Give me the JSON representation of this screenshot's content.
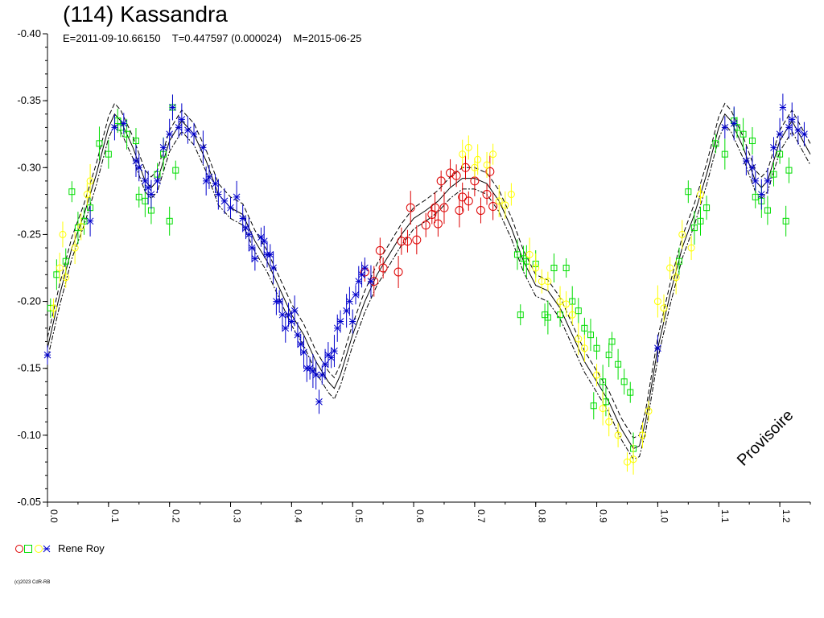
{
  "chart": {
    "title": "(114) Kassandra",
    "subtitle": "E=2011-09-10.66150    T=0.447597 (0.000024)    M=2015-06-25",
    "watermark": "Provisoire",
    "copyright": "(c)2023 CdR-RB",
    "legend_label": "Rene Roy",
    "colors": {
      "red": "#dd0000",
      "green": "#00dd00",
      "yellow": "#ffff00",
      "blue": "#0000cc"
    }
  },
  "chart_data": {
    "type": "scatter",
    "xlabel": "",
    "ylabel": "",
    "xlim": [
      0.0,
      1.25
    ],
    "ylim": [
      -0.4,
      -0.05
    ],
    "y_ticks": [
      -0.4,
      -0.35,
      -0.3,
      -0.25,
      -0.2,
      -0.15,
      -0.1,
      -0.05
    ],
    "y_tick_labels": [
      "-0.40",
      "-0.35",
      "-0.30",
      "-0.25",
      "-0.20",
      "-0.15",
      "-0.10",
      "-0.05"
    ],
    "x_ticks": [
      0.0,
      0.1,
      0.2,
      0.3,
      0.4,
      0.5,
      0.6,
      0.7,
      0.8,
      0.9,
      1.0,
      1.1,
      1.2
    ],
    "x_tick_labels": [
      "0.0",
      "0.1",
      "0.2",
      "0.3",
      "0.4",
      "0.5",
      "0.6",
      "0.7",
      "0.8",
      "0.9",
      "1.0",
      "1.1",
      "1.2"
    ],
    "fit_curve": [
      [
        0.0,
        -0.165
      ],
      [
        0.02,
        -0.205
      ],
      [
        0.04,
        -0.24
      ],
      [
        0.06,
        -0.265
      ],
      [
        0.08,
        -0.295
      ],
      [
        0.1,
        -0.33
      ],
      [
        0.11,
        -0.34
      ],
      [
        0.12,
        -0.335
      ],
      [
        0.14,
        -0.315
      ],
      [
        0.16,
        -0.29
      ],
      [
        0.17,
        -0.285
      ],
      [
        0.18,
        -0.29
      ],
      [
        0.2,
        -0.32
      ],
      [
        0.22,
        -0.335
      ],
      [
        0.24,
        -0.325
      ],
      [
        0.26,
        -0.305
      ],
      [
        0.28,
        -0.28
      ],
      [
        0.3,
        -0.27
      ],
      [
        0.32,
        -0.265
      ],
      [
        0.34,
        -0.245
      ],
      [
        0.36,
        -0.23
      ],
      [
        0.38,
        -0.21
      ],
      [
        0.4,
        -0.19
      ],
      [
        0.42,
        -0.175
      ],
      [
        0.44,
        -0.155
      ],
      [
        0.46,
        -0.14
      ],
      [
        0.47,
        -0.135
      ],
      [
        0.48,
        -0.145
      ],
      [
        0.5,
        -0.175
      ],
      [
        0.52,
        -0.2
      ],
      [
        0.54,
        -0.22
      ],
      [
        0.56,
        -0.235
      ],
      [
        0.58,
        -0.25
      ],
      [
        0.6,
        -0.262
      ],
      [
        0.62,
        -0.268
      ],
      [
        0.64,
        -0.275
      ],
      [
        0.66,
        -0.285
      ],
      [
        0.68,
        -0.292
      ],
      [
        0.7,
        -0.292
      ],
      [
        0.72,
        -0.288
      ],
      [
        0.74,
        -0.275
      ],
      [
        0.76,
        -0.255
      ],
      [
        0.78,
        -0.23
      ],
      [
        0.8,
        -0.212
      ],
      [
        0.82,
        -0.208
      ],
      [
        0.84,
        -0.195
      ],
      [
        0.86,
        -0.175
      ],
      [
        0.88,
        -0.155
      ],
      [
        0.9,
        -0.14
      ],
      [
        0.92,
        -0.125
      ],
      [
        0.94,
        -0.105
      ],
      [
        0.96,
        -0.09
      ],
      [
        0.97,
        -0.092
      ],
      [
        0.98,
        -0.11
      ],
      [
        1.0,
        -0.165
      ],
      [
        1.02,
        -0.205
      ],
      [
        1.04,
        -0.24
      ],
      [
        1.06,
        -0.265
      ],
      [
        1.08,
        -0.295
      ],
      [
        1.1,
        -0.33
      ],
      [
        1.11,
        -0.34
      ],
      [
        1.12,
        -0.335
      ],
      [
        1.14,
        -0.315
      ],
      [
        1.16,
        -0.29
      ],
      [
        1.17,
        -0.285
      ],
      [
        1.18,
        -0.29
      ],
      [
        1.2,
        -0.32
      ],
      [
        1.22,
        -0.335
      ],
      [
        1.25,
        -0.31
      ]
    ],
    "series": [
      {
        "marker": "circle",
        "color": "red",
        "points": [
          [
            0.52,
            -0.222
          ],
          [
            0.535,
            -0.215
          ],
          [
            0.545,
            -0.238
          ],
          [
            0.55,
            -0.225
          ],
          [
            0.575,
            -0.222
          ],
          [
            0.58,
            -0.245
          ],
          [
            0.59,
            -0.245
          ],
          [
            0.595,
            -0.27
          ],
          [
            0.605,
            -0.246
          ],
          [
            0.62,
            -0.257
          ],
          [
            0.63,
            -0.265
          ],
          [
            0.635,
            -0.27
          ],
          [
            0.64,
            -0.258
          ],
          [
            0.645,
            -0.29
          ],
          [
            0.65,
            -0.27
          ],
          [
            0.66,
            -0.296
          ],
          [
            0.67,
            -0.294
          ],
          [
            0.675,
            -0.268
          ],
          [
            0.68,
            -0.278
          ],
          [
            0.685,
            -0.3
          ],
          [
            0.69,
            -0.275
          ],
          [
            0.7,
            -0.29
          ],
          [
            0.71,
            -0.268
          ],
          [
            0.72,
            -0.28
          ],
          [
            0.725,
            -0.297
          ],
          [
            0.73,
            -0.271
          ]
        ]
      },
      {
        "marker": "square",
        "color": "green",
        "points": [
          [
            0.005,
            -0.195
          ],
          [
            0.015,
            -0.22
          ],
          [
            0.03,
            -0.23
          ],
          [
            0.04,
            -0.282
          ],
          [
            0.05,
            -0.255
          ],
          [
            0.06,
            -0.26
          ],
          [
            0.07,
            -0.27
          ],
          [
            0.085,
            -0.318
          ],
          [
            0.1,
            -0.31
          ],
          [
            0.115,
            -0.335
          ],
          [
            0.12,
            -0.33
          ],
          [
            0.13,
            -0.325
          ],
          [
            0.145,
            -0.32
          ],
          [
            0.15,
            -0.278
          ],
          [
            0.16,
            -0.275
          ],
          [
            0.17,
            -0.268
          ],
          [
            0.18,
            -0.295
          ],
          [
            0.19,
            -0.31
          ],
          [
            0.2,
            -0.26
          ],
          [
            0.205,
            -0.345
          ],
          [
            0.21,
            -0.298
          ],
          [
            0.77,
            -0.235
          ],
          [
            0.78,
            -0.232
          ],
          [
            0.775,
            -0.19
          ],
          [
            0.785,
            -0.23
          ],
          [
            0.8,
            -0.228
          ],
          [
            0.815,
            -0.19
          ],
          [
            0.82,
            -0.188
          ],
          [
            0.83,
            -0.225
          ],
          [
            0.84,
            -0.19
          ],
          [
            0.85,
            -0.225
          ],
          [
            0.86,
            -0.2
          ],
          [
            0.87,
            -0.193
          ],
          [
            0.88,
            -0.18
          ],
          [
            0.89,
            -0.175
          ],
          [
            0.895,
            -0.122
          ],
          [
            0.9,
            -0.165
          ],
          [
            0.91,
            -0.14
          ],
          [
            0.915,
            -0.125
          ],
          [
            0.92,
            -0.16
          ],
          [
            0.925,
            -0.17
          ],
          [
            0.935,
            -0.153
          ],
          [
            0.945,
            -0.14
          ],
          [
            0.955,
            -0.132
          ],
          [
            0.96,
            -0.09
          ],
          [
            1.035,
            -0.23
          ],
          [
            1.05,
            -0.282
          ],
          [
            1.06,
            -0.255
          ],
          [
            1.07,
            -0.26
          ],
          [
            1.08,
            -0.27
          ],
          [
            1.095,
            -0.318
          ],
          [
            1.11,
            -0.31
          ],
          [
            1.125,
            -0.335
          ],
          [
            1.13,
            -0.33
          ],
          [
            1.14,
            -0.325
          ],
          [
            1.155,
            -0.32
          ],
          [
            1.16,
            -0.278
          ],
          [
            1.17,
            -0.275
          ],
          [
            1.18,
            -0.268
          ],
          [
            1.19,
            -0.295
          ],
          [
            1.2,
            -0.31
          ],
          [
            1.21,
            -0.26
          ],
          [
            1.215,
            -0.298
          ]
        ]
      },
      {
        "marker": "diamond",
        "color": "yellow",
        "points": [
          [
            0.01,
            -0.195
          ],
          [
            0.02,
            -0.225
          ],
          [
            0.025,
            -0.25
          ],
          [
            0.03,
            -0.218
          ],
          [
            0.045,
            -0.24
          ],
          [
            0.055,
            -0.256
          ],
          [
            0.065,
            -0.28
          ],
          [
            0.07,
            -0.29
          ],
          [
            0.68,
            -0.31
          ],
          [
            0.69,
            -0.315
          ],
          [
            0.7,
            -0.3
          ],
          [
            0.705,
            -0.306
          ],
          [
            0.72,
            -0.302
          ],
          [
            0.73,
            -0.31
          ],
          [
            0.74,
            -0.275
          ],
          [
            0.75,
            -0.272
          ],
          [
            0.76,
            -0.28
          ],
          [
            0.79,
            -0.235
          ],
          [
            0.8,
            -0.225
          ],
          [
            0.81,
            -0.215
          ],
          [
            0.82,
            -0.215
          ],
          [
            0.84,
            -0.2
          ],
          [
            0.85,
            -0.198
          ],
          [
            0.86,
            -0.19
          ],
          [
            0.87,
            -0.172
          ],
          [
            0.88,
            -0.165
          ],
          [
            0.9,
            -0.145
          ],
          [
            0.91,
            -0.12
          ],
          [
            0.92,
            -0.11
          ],
          [
            0.935,
            -0.1
          ],
          [
            0.95,
            -0.08
          ],
          [
            0.96,
            -0.082
          ],
          [
            0.975,
            -0.1
          ],
          [
            0.985,
            -0.118
          ],
          [
            1.0,
            -0.2
          ],
          [
            1.01,
            -0.195
          ],
          [
            1.02,
            -0.225
          ],
          [
            1.03,
            -0.218
          ],
          [
            1.04,
            -0.25
          ],
          [
            1.055,
            -0.24
          ],
          [
            1.07,
            -0.28
          ]
        ]
      },
      {
        "marker": "star",
        "color": "blue",
        "points": [
          [
            0.0,
            -0.16
          ],
          [
            0.07,
            -0.26
          ],
          [
            0.11,
            -0.33
          ],
          [
            0.125,
            -0.333
          ],
          [
            0.145,
            -0.305
          ],
          [
            0.15,
            -0.3
          ],
          [
            0.16,
            -0.29
          ],
          [
            0.165,
            -0.285
          ],
          [
            0.17,
            -0.28
          ],
          [
            0.18,
            -0.29
          ],
          [
            0.19,
            -0.315
          ],
          [
            0.2,
            -0.325
          ],
          [
            0.205,
            -0.345
          ],
          [
            0.215,
            -0.33
          ],
          [
            0.22,
            -0.336
          ],
          [
            0.23,
            -0.328
          ],
          [
            0.24,
            -0.325
          ],
          [
            0.255,
            -0.315
          ],
          [
            0.26,
            -0.29
          ],
          [
            0.265,
            -0.293
          ],
          [
            0.275,
            -0.288
          ],
          [
            0.28,
            -0.28
          ],
          [
            0.29,
            -0.275
          ],
          [
            0.3,
            -0.27
          ],
          [
            0.31,
            -0.278
          ],
          [
            0.32,
            -0.262
          ],
          [
            0.325,
            -0.255
          ],
          [
            0.33,
            -0.25
          ],
          [
            0.335,
            -0.24
          ],
          [
            0.34,
            -0.232
          ],
          [
            0.35,
            -0.248
          ],
          [
            0.355,
            -0.245
          ],
          [
            0.36,
            -0.235
          ],
          [
            0.365,
            -0.235
          ],
          [
            0.37,
            -0.225
          ],
          [
            0.375,
            -0.2
          ],
          [
            0.38,
            -0.2
          ],
          [
            0.385,
            -0.19
          ],
          [
            0.39,
            -0.18
          ],
          [
            0.395,
            -0.19
          ],
          [
            0.4,
            -0.185
          ],
          [
            0.405,
            -0.193
          ],
          [
            0.41,
            -0.175
          ],
          [
            0.415,
            -0.168
          ],
          [
            0.42,
            -0.162
          ],
          [
            0.425,
            -0.15
          ],
          [
            0.43,
            -0.15
          ],
          [
            0.435,
            -0.148
          ],
          [
            0.44,
            -0.145
          ],
          [
            0.445,
            -0.125
          ],
          [
            0.45,
            -0.145
          ],
          [
            0.455,
            -0.153
          ],
          [
            0.46,
            -0.16
          ],
          [
            0.465,
            -0.158
          ],
          [
            0.47,
            -0.163
          ],
          [
            0.475,
            -0.18
          ],
          [
            0.48,
            -0.185
          ],
          [
            0.49,
            -0.193
          ],
          [
            0.495,
            -0.2
          ],
          [
            0.5,
            -0.185
          ],
          [
            0.505,
            -0.205
          ],
          [
            0.51,
            -0.215
          ],
          [
            0.515,
            -0.22
          ],
          [
            0.52,
            -0.225
          ],
          [
            0.53,
            -0.215
          ],
          [
            1.0,
            -0.165
          ],
          [
            1.11,
            -0.33
          ],
          [
            1.125,
            -0.333
          ],
          [
            1.145,
            -0.305
          ],
          [
            1.155,
            -0.3
          ],
          [
            1.16,
            -0.29
          ],
          [
            1.17,
            -0.28
          ],
          [
            1.18,
            -0.29
          ],
          [
            1.19,
            -0.315
          ],
          [
            1.2,
            -0.325
          ],
          [
            1.205,
            -0.345
          ],
          [
            1.215,
            -0.33
          ],
          [
            1.22,
            -0.336
          ],
          [
            1.23,
            -0.328
          ],
          [
            1.24,
            -0.325
          ]
        ]
      }
    ]
  }
}
